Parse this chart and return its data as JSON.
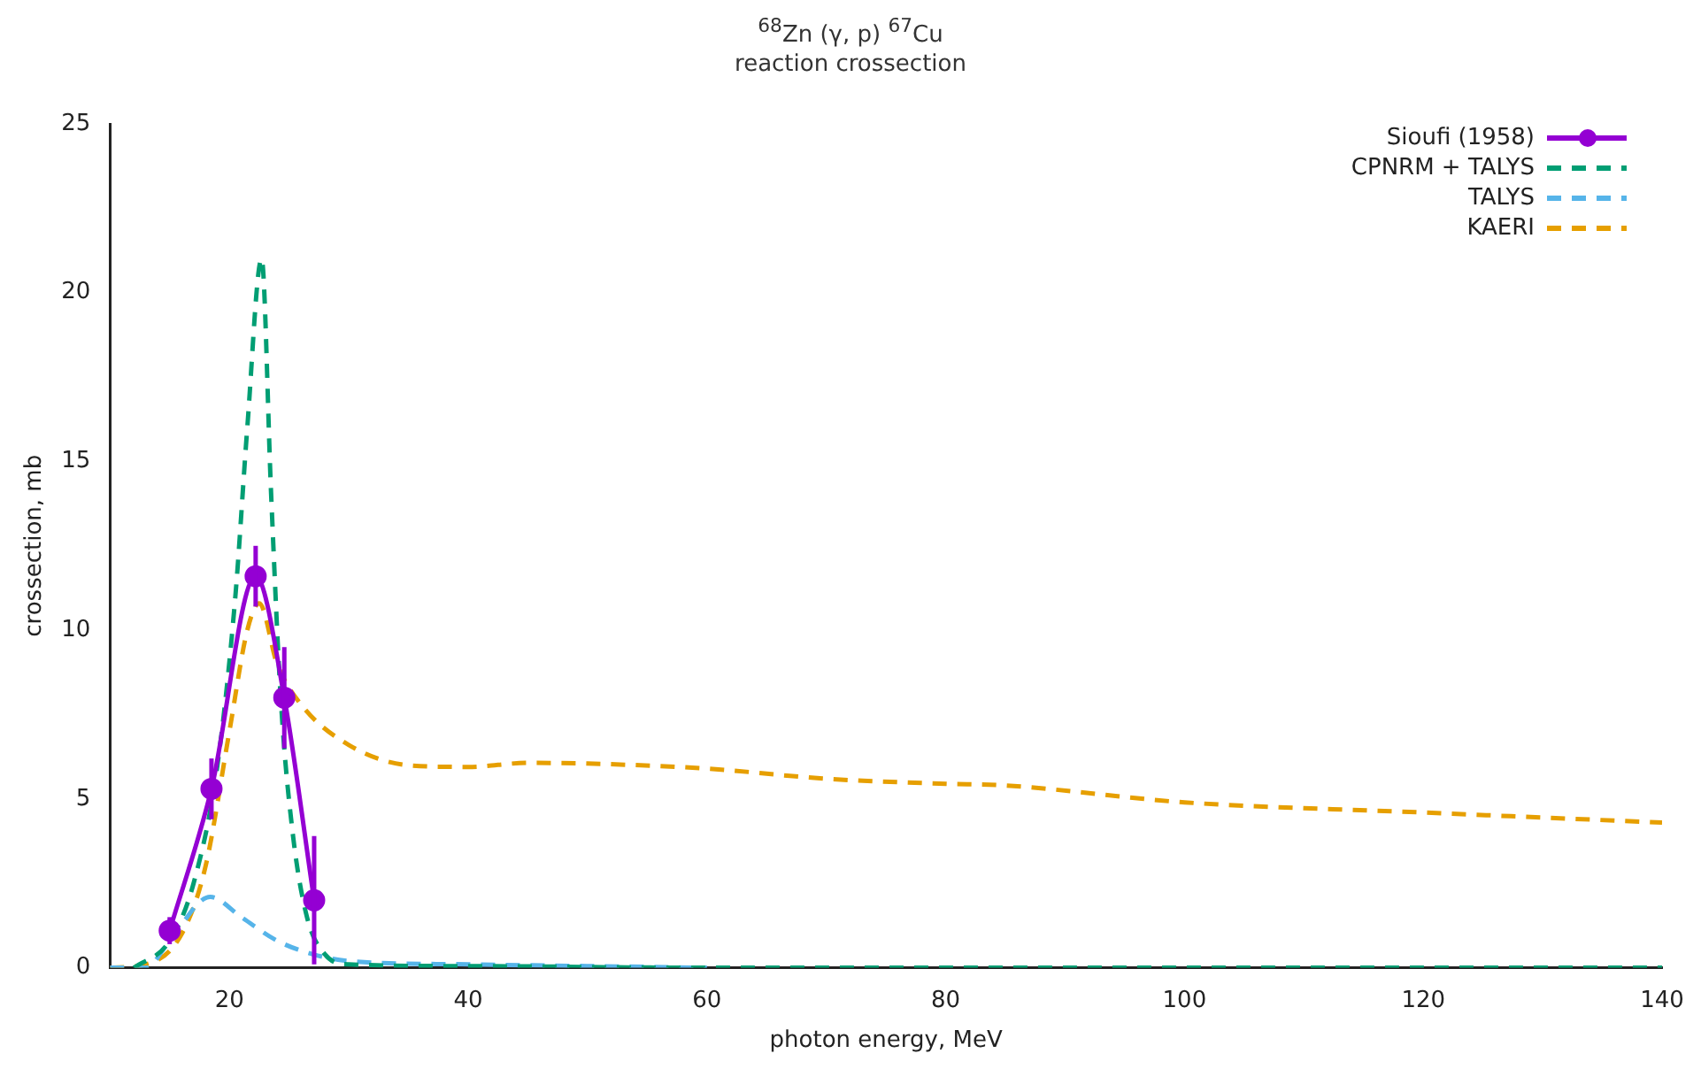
{
  "chart_data": {
    "type": "line",
    "title": "$^{68}$Zn (γ, p) $^{67}$Cu",
    "subtitle": "reaction crossection",
    "xlabel": "photon energy, MeV",
    "ylabel": "crossection, mb",
    "xlim": [
      10,
      140
    ],
    "xticks": [
      20,
      40,
      60,
      80,
      100,
      120,
      140
    ],
    "ylim": [
      0,
      25
    ],
    "yticks": [
      0,
      5,
      10,
      15,
      20,
      25
    ],
    "grid": false,
    "legend": "top right",
    "series": [
      {
        "name": "Sioufi (1958)",
        "color": "#9400d3",
        "marker": "circle",
        "line_style": "solid",
        "x": [
          15,
          18.5,
          22.2,
          24.6,
          27.1
        ],
        "values": [
          1.1,
          5.3,
          11.6,
          8.0,
          2.0
        ],
        "errors": [
          0.4,
          0.9,
          0.9,
          1.5,
          1.9
        ]
      },
      {
        "name": "CPNRM + TALYS",
        "color": "#009e73",
        "marker": "none",
        "line_style": "dashed",
        "x": [
          12,
          15,
          17,
          19,
          20.5,
          21.5,
          22.7,
          23.5,
          24.3,
          25.3,
          26.5,
          28,
          30,
          40,
          60,
          100,
          140
        ],
        "values": [
          0,
          0.8,
          2.5,
          6,
          11,
          16,
          21,
          14,
          8,
          4,
          1.5,
          0.4,
          0.1,
          0.05,
          0,
          0,
          0
        ]
      },
      {
        "name": "TALYS",
        "color": "#56b4e9",
        "marker": "none",
        "line_style": "dashed",
        "x": [
          10,
          13,
          15,
          18.4,
          21,
          24,
          27,
          30,
          40,
          50,
          60
        ],
        "values": [
          0,
          0,
          0.8,
          2.1,
          1.5,
          0.8,
          0.4,
          0.2,
          0.1,
          0.05,
          0
        ]
      },
      {
        "name": "KAERI",
        "color": "#e69f00",
        "marker": "none",
        "line_style": "dashed",
        "x": [
          10,
          13,
          16,
          18,
          20,
          21.5,
          22.5,
          24,
          26,
          30,
          35,
          40,
          45,
          50,
          60,
          70,
          80,
          85,
          100,
          120,
          140
        ],
        "values": [
          0,
          0.1,
          1,
          3,
          7,
          10,
          10.8,
          9,
          7.8,
          6.6,
          6.0,
          5.95,
          6.07,
          6.05,
          5.9,
          5.6,
          5.45,
          5.4,
          4.9,
          4.6,
          4.3
        ]
      }
    ]
  }
}
